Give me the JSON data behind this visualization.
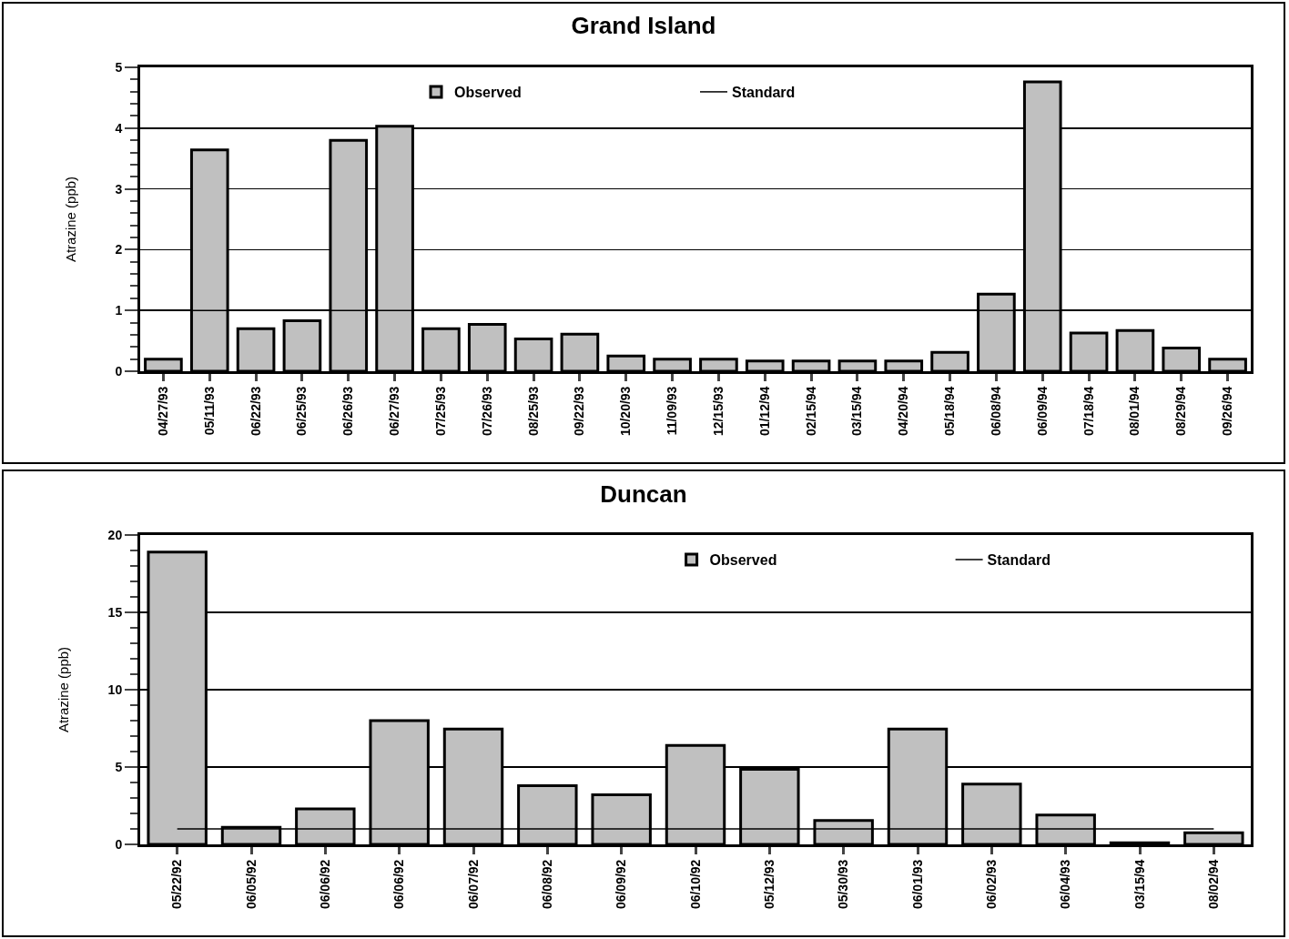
{
  "chart_data": [
    {
      "type": "bar",
      "title": "Grand Island",
      "ylabel": "Atrazine (ppb)",
      "categories": [
        "04/27/93",
        "05/11/93",
        "06/22/93",
        "06/25/93",
        "06/26/93",
        "06/27/93",
        "07/25/93",
        "07/26/93",
        "08/25/93",
        "09/22/93",
        "10/20/93",
        "11/09/93",
        "12/15/93",
        "01/12/94",
        "02/15/94",
        "03/15/94",
        "04/20/94",
        "05/18/94",
        "06/08/94",
        "06/09/94",
        "07/18/94",
        "08/01/94",
        "08/29/94",
        "09/26/94"
      ],
      "series": [
        {
          "name": "Observed",
          "color": "#c0c0c0",
          "values": [
            0.2,
            3.64,
            0.7,
            0.83,
            3.8,
            4.03,
            0.7,
            0.77,
            0.53,
            0.61,
            0.25,
            0.2,
            0.2,
            0.17,
            0.17,
            0.17,
            0.17,
            0.31,
            1.27,
            4.76,
            0.63,
            0.67,
            0.38,
            0.2
          ]
        },
        {
          "name": "Standard",
          "type": "line",
          "color": "#000000",
          "values": [
            1,
            1,
            1,
            1,
            1,
            1,
            1,
            1,
            1,
            1,
            1,
            1,
            1,
            1,
            1,
            1,
            1,
            1,
            1,
            1,
            1,
            1,
            1,
            1
          ]
        }
      ],
      "ylim": [
        0,
        5
      ],
      "yticks": [
        0,
        1,
        2,
        3,
        4,
        5
      ],
      "grid": "y",
      "legend": "top"
    },
    {
      "type": "bar",
      "title": "Duncan",
      "ylabel": "Atrazine (ppb)",
      "categories": [
        "05/22/92",
        "06/05/92",
        "06/06/92",
        "06/06/92",
        "06/07/92",
        "06/08/92",
        "06/09/92",
        "06/10/92",
        "05/12/93",
        "05/30/93",
        "06/01/93",
        "06/02/93",
        "06/04/93",
        "03/15/94",
        "08/02/94"
      ],
      "series": [
        {
          "name": "Observed",
          "color": "#c0c0c0",
          "values": [
            18.9,
            1.1,
            2.3,
            8.0,
            7.45,
            3.8,
            3.2,
            6.4,
            4.85,
            1.55,
            7.45,
            3.9,
            1.9,
            0.1,
            0.75
          ]
        },
        {
          "name": "Standard",
          "type": "line",
          "color": "#000000",
          "values": [
            1,
            1,
            1,
            1,
            1,
            1,
            1,
            1,
            1,
            1,
            1,
            1,
            1,
            1,
            1
          ]
        }
      ],
      "ylim": [
        0,
        20
      ],
      "yticks": [
        0,
        5,
        10,
        15,
        20
      ],
      "grid": "y",
      "legend": "top right"
    }
  ]
}
